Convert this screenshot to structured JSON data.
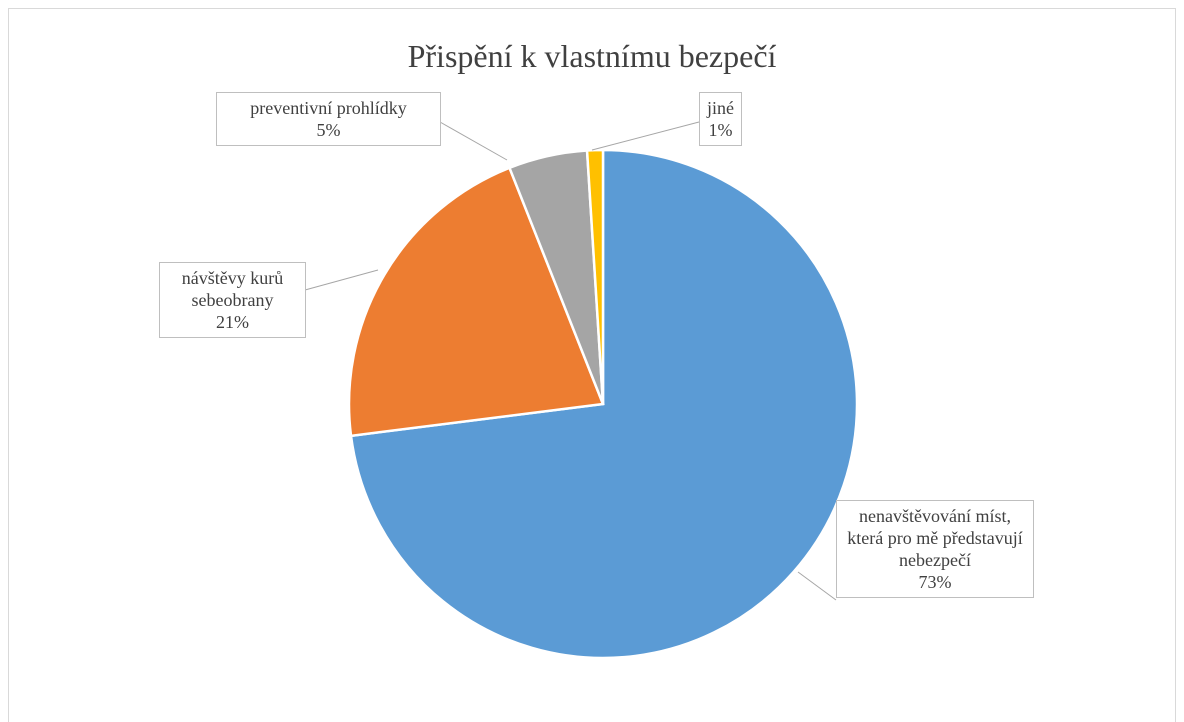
{
  "chart_data": {
    "type": "pie",
    "title": "Přispění k vlastnímu bezpečí",
    "categories": [
      "nenavštěvování míst, která pro mě představují nebezpečí",
      "návštěvy kurů sebeobrany",
      "preventivní prohlídky",
      "jiné"
    ],
    "values": [
      73,
      21,
      5,
      1
    ],
    "value_labels": [
      "73%",
      "21%",
      "5%",
      "1%"
    ],
    "colors": [
      "#5b9bd5",
      "#ed7d31",
      "#a5a5a5",
      "#ffc000"
    ]
  }
}
